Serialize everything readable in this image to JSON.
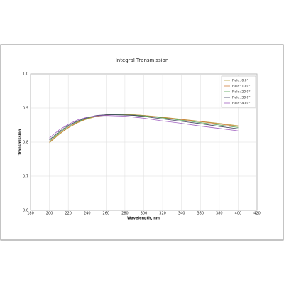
{
  "chart_data": {
    "type": "line",
    "title": "Integral Transmission",
    "x_label": "Wavelength, nm",
    "y_label": "Transmission",
    "x": [
      200,
      210,
      220,
      230,
      240,
      250,
      260,
      270,
      280,
      290,
      300,
      320,
      340,
      360,
      380,
      400
    ],
    "series": [
      {
        "name": "Field: 0.0°",
        "color": "#b8a040",
        "values": [
          0.798,
          0.822,
          0.842,
          0.857,
          0.868,
          0.875,
          0.879,
          0.881,
          0.881,
          0.88,
          0.878,
          0.873,
          0.867,
          0.861,
          0.855,
          0.848
        ]
      },
      {
        "name": "Field: 10.0°",
        "color": "#d08040",
        "values": [
          0.8,
          0.824,
          0.843,
          0.858,
          0.869,
          0.876,
          0.88,
          0.881,
          0.881,
          0.88,
          0.878,
          0.872,
          0.866,
          0.86,
          0.853,
          0.846
        ]
      },
      {
        "name": "Field: 20.0°",
        "color": "#50a050",
        "values": [
          0.803,
          0.827,
          0.846,
          0.86,
          0.87,
          0.877,
          0.88,
          0.881,
          0.88,
          0.879,
          0.877,
          0.871,
          0.864,
          0.857,
          0.85,
          0.843
        ]
      },
      {
        "name": "Field: 30.0°",
        "color": "#404060",
        "values": [
          0.807,
          0.83,
          0.849,
          0.862,
          0.872,
          0.878,
          0.88,
          0.88,
          0.879,
          0.878,
          0.875,
          0.868,
          0.861,
          0.854,
          0.846,
          0.839
        ]
      },
      {
        "name": "Field: 40.0°",
        "color": "#a060c0",
        "values": [
          0.812,
          0.835,
          0.852,
          0.865,
          0.873,
          0.877,
          0.878,
          0.877,
          0.876,
          0.873,
          0.87,
          0.862,
          0.855,
          0.847,
          0.84,
          0.833
        ]
      }
    ],
    "xlim": [
      180,
      420
    ],
    "xticks": [
      180,
      200,
      220,
      240,
      260,
      280,
      300,
      320,
      340,
      360,
      380,
      400,
      420
    ],
    "ylim": [
      0.6,
      1.0
    ],
    "yticks": [
      0.6,
      0.7,
      0.8,
      0.9,
      {
        "value": 1.0,
        "label": "1.0"
      }
    ],
    "grid": true,
    "legend": "top-right"
  }
}
